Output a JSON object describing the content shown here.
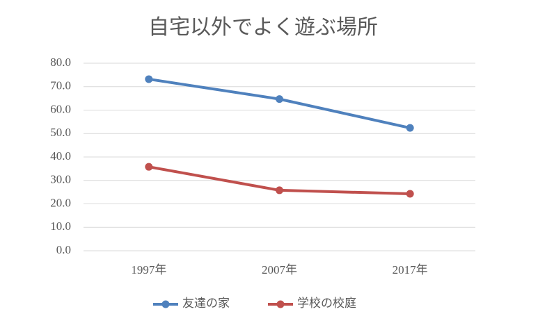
{
  "chart_data": {
    "type": "line",
    "title": "自宅以外でよく遊ぶ場所",
    "categories": [
      "1997年",
      "2007年",
      "2017年"
    ],
    "series": [
      {
        "name": "友達の家",
        "color": "#4f81bd",
        "values": [
          73.2,
          64.7,
          52.4
        ]
      },
      {
        "name": "学校の校庭",
        "color": "#c0504d",
        "values": [
          35.8,
          25.8,
          24.3
        ]
      }
    ],
    "ylim": [
      0,
      80
    ],
    "yticks": [
      {
        "value": 0,
        "label": "0.0"
      },
      {
        "value": 10,
        "label": "10.0"
      },
      {
        "value": 20,
        "label": "20.0"
      },
      {
        "value": 30,
        "label": "30.0"
      },
      {
        "value": 40,
        "label": "40.0"
      },
      {
        "value": 50,
        "label": "50.0"
      },
      {
        "value": 60,
        "label": "60.0"
      },
      {
        "value": 70,
        "label": "70.0"
      },
      {
        "value": 80,
        "label": "80.0"
      }
    ],
    "grid": true,
    "legend": "bottom"
  }
}
